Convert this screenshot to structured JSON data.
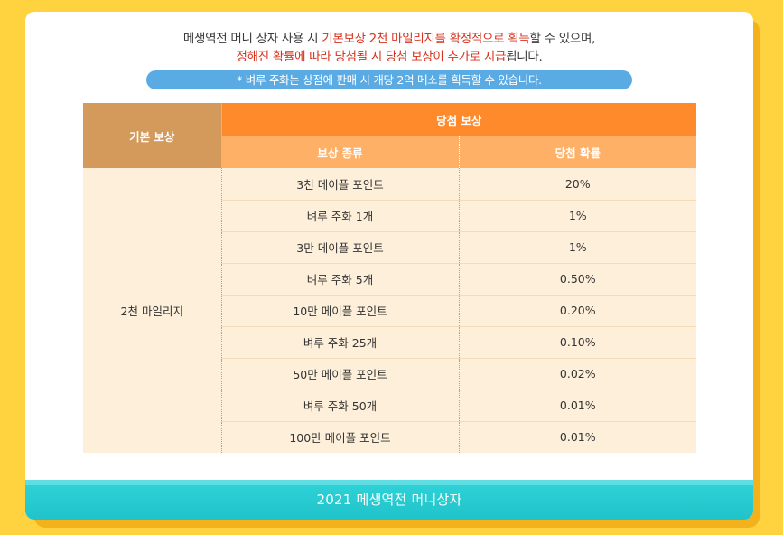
{
  "intro": {
    "line1_pre": "메생역전 머니 상자 사용 시 ",
    "line1_red": "기본보상 2천 마일리지를 확정적으로 획득",
    "line1_post": "할 수 있으며,",
    "line2_red": "정해진 확률에 따라 당첨될 시 당첨 보상이 추가로 지급",
    "line2_post": "됩니다."
  },
  "notice": "* 벼루 주화는 상점에 판매 시 개당 2억 메소를 획득할 수 있습니다.",
  "table": {
    "basic_header": "기본 보상",
    "win_header": "당첨 보상",
    "type_header": "보상 종류",
    "prob_header": "당첨 확률",
    "basic_value": "2천 마일리지",
    "rows": [
      {
        "type": "3천 메이플 포인트",
        "prob": "20%"
      },
      {
        "type": "벼루 주화 1개",
        "prob": "1%"
      },
      {
        "type": "3만 메이플 포인트",
        "prob": "1%"
      },
      {
        "type": "벼루 주화 5개",
        "prob": "0.50%"
      },
      {
        "type": "10만 메이플 포인트",
        "prob": "0.20%"
      },
      {
        "type": "벼루 주화 25개",
        "prob": "0.10%"
      },
      {
        "type": "50만 메이플 포인트",
        "prob": "0.02%"
      },
      {
        "type": "벼루 주화 50개",
        "prob": "0.01%"
      },
      {
        "type": "100만 메이플 포인트",
        "prob": "0.01%"
      }
    ]
  },
  "footer": "2021 메생역전 머니상자",
  "colors": {
    "background": "#ffd23f",
    "accent_orange": "#ff8a2b",
    "basic_brown": "#d49a5c",
    "row_cream": "#fdefd9",
    "notice_blue": "#5aaae4",
    "footer_teal": "#20c3c9",
    "highlight_red": "#d6321d"
  }
}
